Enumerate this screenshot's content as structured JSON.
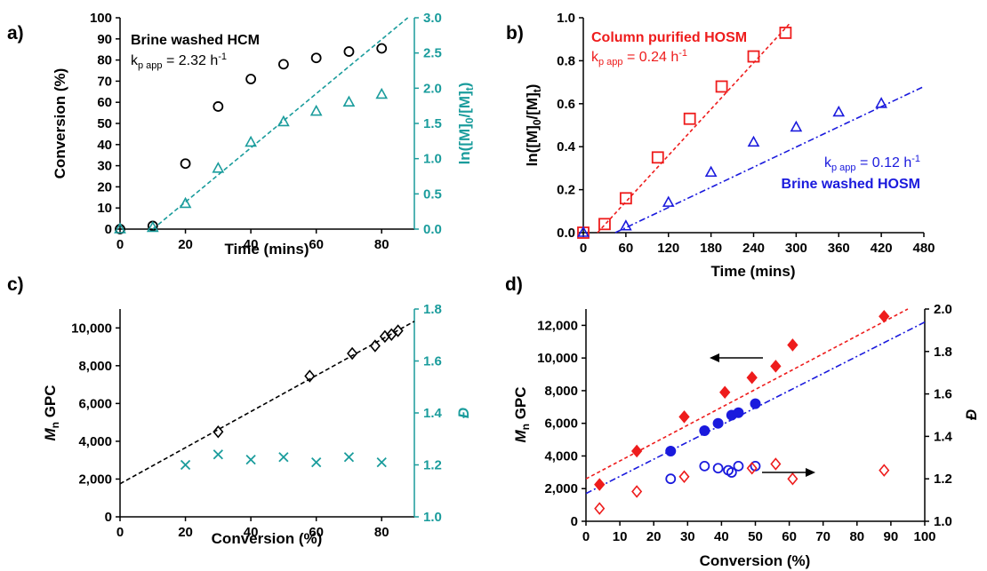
{
  "chart_data": [
    {
      "panel_label": "a)",
      "type": "scatter",
      "xlabel": "Time (mins)",
      "ylabel": "Conversion (%)",
      "y2label": "ln([M]0/[M]t)",
      "xlim": [
        0,
        90
      ],
      "ylim": [
        0,
        100
      ],
      "y2lim": [
        0,
        3.0
      ],
      "xticks": [
        "0",
        "20",
        "40",
        "60",
        "80"
      ],
      "yticks": [
        "0",
        "10",
        "20",
        "30",
        "40",
        "50",
        "60",
        "70",
        "80",
        "90",
        "100"
      ],
      "y2ticks": [
        "0.0",
        "0.5",
        "1.0",
        "1.5",
        "2.0",
        "2.5",
        "3.0"
      ],
      "annotation_title": "Brine washed HCM",
      "annotation_rate": "kp app = 2.32 h-1",
      "colors": {
        "conversion": "#000000",
        "ln": "#1a9c9c"
      },
      "series": [
        {
          "axis": "left",
          "marker": "circle",
          "color": "#000000",
          "x": [
            0,
            10,
            20,
            30,
            40,
            50,
            60,
            70,
            80
          ],
          "y": [
            0,
            1.5,
            31,
            58,
            71,
            78,
            81,
            84,
            85.5
          ]
        },
        {
          "axis": "right",
          "marker": "triangle",
          "color": "#1a9c9c",
          "x": [
            0,
            10,
            20,
            30,
            40,
            50,
            60,
            70,
            80
          ],
          "y": [
            0,
            0.02,
            0.36,
            0.86,
            1.23,
            1.52,
            1.67,
            1.8,
            1.91
          ]
        }
      ],
      "fits": [
        {
          "axis": "right",
          "color": "#1a9c9c",
          "x": [
            10,
            88
          ],
          "y": [
            0,
            3.0
          ]
        }
      ]
    },
    {
      "panel_label": "b)",
      "type": "scatter",
      "xlabel": "Time (mins)",
      "ylabel": "ln([M]0/[M]t)",
      "xlim": [
        0,
        480
      ],
      "ylim": [
        0,
        1.0
      ],
      "xticks": [
        "0",
        "60",
        "120",
        "180",
        "240",
        "300",
        "360",
        "420",
        "480"
      ],
      "yticks": [
        "0.0",
        "0.2",
        "0.4",
        "0.6",
        "0.8",
        "1.0"
      ],
      "annotation_red_title": "Column purified HOSM",
      "annotation_red_rate": "kp app = 0.24 h-1",
      "annotation_blue_rate": "kp app = 0.12 h-1",
      "annotation_blue_title": "Brine washed HOSM",
      "colors": {
        "red": "#ee1c1c",
        "blue": "#1a1add"
      },
      "series": [
        {
          "marker": "square",
          "color": "#ee1c1c",
          "x": [
            0,
            30,
            60,
            105,
            150,
            195,
            240,
            285
          ],
          "y": [
            0,
            0.04,
            0.16,
            0.35,
            0.53,
            0.68,
            0.82,
            0.93
          ]
        },
        {
          "marker": "triangle",
          "color": "#1a1add",
          "x": [
            0,
            60,
            120,
            180,
            240,
            300,
            360,
            420
          ],
          "y": [
            0,
            0.03,
            0.14,
            0.28,
            0.42,
            0.49,
            0.56,
            0.6
          ]
        }
      ],
      "fits": [
        {
          "color": "#ee1c1c",
          "dash": "4,3",
          "x": [
            20,
            290
          ],
          "y": [
            0,
            0.97
          ]
        },
        {
          "color": "#1a1add",
          "dash": "7,3,2,3",
          "x": [
            45,
            480
          ],
          "y": [
            0,
            0.68
          ]
        }
      ]
    },
    {
      "panel_label": "c)",
      "type": "scatter",
      "xlabel": "Conversion (%)",
      "ylabel": "Mn GPC",
      "y2label": "Đ",
      "xlim": [
        0,
        90
      ],
      "ylim": [
        0,
        11000
      ],
      "y2lim": [
        1.0,
        1.8
      ],
      "xticks": [
        "0",
        "20",
        "40",
        "60",
        "80"
      ],
      "yticks": [
        "0",
        "2,000",
        "4,000",
        "6,000",
        "8,000",
        "10,000"
      ],
      "y2ticks": [
        "1.0",
        "1.2",
        "1.4",
        "1.6",
        "1.8"
      ],
      "colors": {
        "mn": "#000000",
        "dispersity": "#1a9c9c"
      },
      "series": [
        {
          "axis": "left",
          "marker": "diamond",
          "color": "#000000",
          "x": [
            30,
            58,
            71,
            78,
            81,
            83,
            85
          ],
          "y": [
            4500,
            7450,
            8650,
            9050,
            9550,
            9650,
            9850
          ]
        },
        {
          "axis": "right",
          "marker": "x",
          "color": "#1a9c9c",
          "x": [
            20,
            30,
            40,
            50,
            60,
            70,
            80
          ],
          "y": [
            1.2,
            1.24,
            1.22,
            1.23,
            1.21,
            1.23,
            1.21
          ]
        }
      ],
      "fits": [
        {
          "axis": "left",
          "color": "#000000",
          "x": [
            0,
            90
          ],
          "y": [
            1750,
            10350
          ]
        }
      ]
    },
    {
      "panel_label": "d)",
      "type": "scatter",
      "xlabel": "Conversion (%)",
      "ylabel": "Mn GPC",
      "y2label": "Đ",
      "xlim": [
        0,
        100
      ],
      "ylim": [
        0,
        13000
      ],
      "y2lim": [
        1.0,
        2.0
      ],
      "xticks": [
        "0",
        "10",
        "20",
        "30",
        "40",
        "50",
        "60",
        "70",
        "80",
        "90",
        "100"
      ],
      "yticks": [
        "0",
        "2,000",
        "4,000",
        "6,000",
        "8,000",
        "10,000",
        "12,000"
      ],
      "y2ticks": [
        "1.0",
        "1.2",
        "1.4",
        "1.6",
        "1.8",
        "2.0"
      ],
      "colors": {
        "red": "#ee1c1c",
        "blue": "#1a1add"
      },
      "series": [
        {
          "axis": "left",
          "marker": "diamond-filled",
          "color": "#ee1c1c",
          "x": [
            4,
            15,
            29,
            41,
            49,
            56,
            61,
            88
          ],
          "y": [
            2250,
            4300,
            6400,
            7900,
            8800,
            9500,
            10800,
            12550
          ]
        },
        {
          "axis": "left",
          "marker": "circle-filled",
          "color": "#1a1add",
          "x": [
            25,
            35,
            39,
            43,
            45,
            50
          ],
          "y": [
            4300,
            5550,
            6000,
            6500,
            6650,
            7200
          ]
        },
        {
          "axis": "right",
          "marker": "circle",
          "color": "#1a1add",
          "x": [
            25,
            35,
            39,
            42,
            43,
            45,
            50
          ],
          "y": [
            1.2,
            1.26,
            1.25,
            1.24,
            1.23,
            1.26,
            1.26
          ]
        },
        {
          "axis": "right",
          "marker": "diamond",
          "color": "#ee1c1c",
          "x": [
            4,
            15,
            29,
            49,
            56,
            61,
            88
          ],
          "y": [
            1.06,
            1.14,
            1.21,
            1.25,
            1.27,
            1.2,
            1.24
          ]
        }
      ],
      "fits": [
        {
          "axis": "left",
          "color": "#ee1c1c",
          "dash": "4,3",
          "x": [
            0,
            95
          ],
          "y": [
            2600,
            13000
          ]
        },
        {
          "axis": "left",
          "color": "#1a1add",
          "dash": "7,3,2,3",
          "x": [
            0,
            100
          ],
          "y": [
            1700,
            12200
          ]
        }
      ]
    }
  ]
}
